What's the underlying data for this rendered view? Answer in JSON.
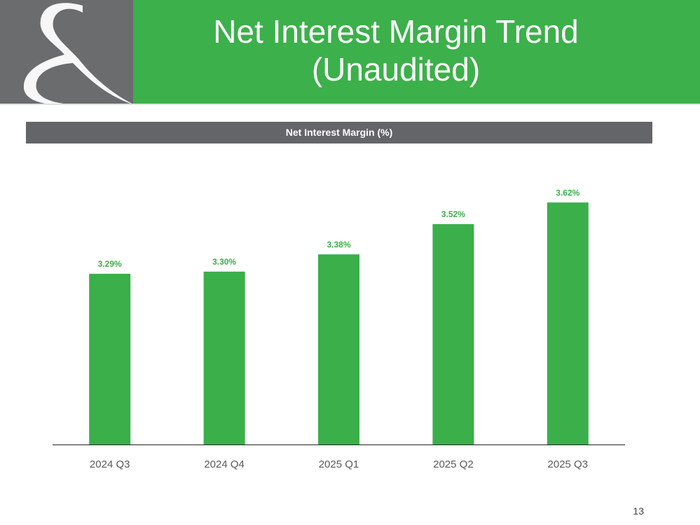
{
  "header": {
    "title_line1": "Net Interest Margin Trend",
    "title_line2": "(Unaudited)",
    "logo_icon": "ampersand-logo-icon"
  },
  "colors": {
    "brand_green": "#3cb04a",
    "brand_gray": "#6b6c6e",
    "bar_green": "#3aaf4a",
    "label_green": "#3aaf4a"
  },
  "section": {
    "label": "Net Interest Margin (%)"
  },
  "chart_data": {
    "type": "bar",
    "categories": [
      "2024 Q3",
      "2024 Q4",
      "2025 Q1",
      "2025 Q2",
      "2025 Q3"
    ],
    "values": [
      3.29,
      3.3,
      3.38,
      3.52,
      3.62
    ],
    "data_labels": [
      "3.29%",
      "3.30%",
      "3.38%",
      "3.52%",
      "3.62%"
    ],
    "title": "Net Interest Margin (%)",
    "xlabel": "",
    "ylabel": "",
    "ylim": [
      2.5,
      3.65
    ],
    "grid": false,
    "legend": "none"
  },
  "footer": {
    "page_number": "13"
  }
}
